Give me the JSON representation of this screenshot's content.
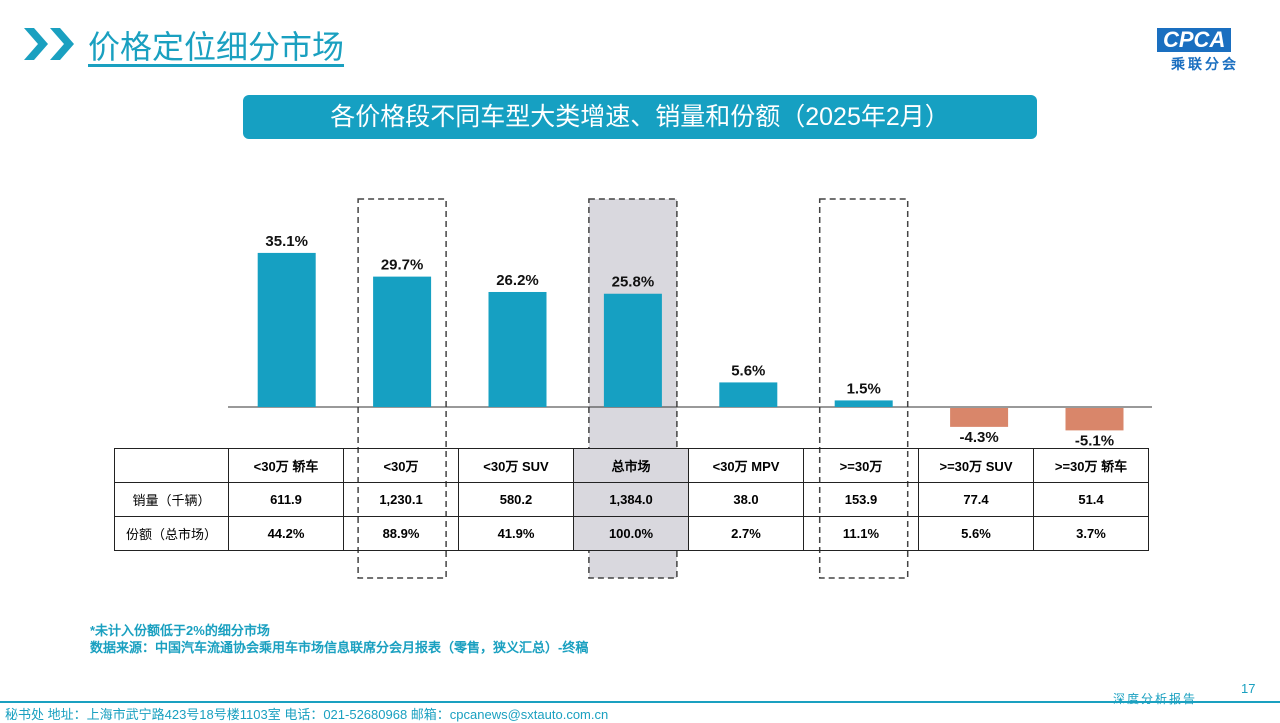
{
  "header": {
    "title": "价格定位细分市场",
    "logo_text": "CPCA",
    "logo_cn": "乘联分会"
  },
  "chart_data": {
    "type": "bar",
    "title": "各价格段不同车型大类增速、销量和份额（2025年2月）",
    "categories": [
      "<30万 轿车",
      "<30万",
      "<30万 SUV",
      "总市场",
      "<30万 MPV",
      ">=30万",
      ">=30万 SUV",
      ">=30万 轿车"
    ],
    "values": [
      35.1,
      29.7,
      26.2,
      25.8,
      5.6,
      1.5,
      -4.3,
      -5.1
    ],
    "labels": [
      "35.1%",
      "29.7%",
      "26.2%",
      "25.8%",
      "5.6%",
      "1.5%",
      "-4.3%",
      "-5.1%"
    ],
    "positive_color": "#16a0c2",
    "negative_color": "#d9866a",
    "highlight_fill": "#d9d8de",
    "table": {
      "rows": [
        {
          "label": "销量（千辆）",
          "values": [
            "611.9",
            "1,230.1",
            "580.2",
            "1,384.0",
            "38.0",
            "153.9",
            "77.4",
            "51.4"
          ]
        },
        {
          "label": "份额（总市场）",
          "values": [
            "44.2%",
            "88.9%",
            "41.9%",
            "100.0%",
            "2.7%",
            "11.1%",
            "5.6%",
            "3.7%"
          ]
        }
      ]
    }
  },
  "notes": {
    "line1": "*未计入份额低于2%的细分市场",
    "line2": "数据来源：中国汽车流通协会乘用车市场信息联席分会月报表（零售，狭义汇总）-终稿"
  },
  "footer": {
    "text": "秘书处   地址：上海市武宁路423号18号楼1103室  电话：021-52680968   邮箱：cpcanews@sxtauto.com.cn",
    "page": "17",
    "report": "深度分析报告"
  }
}
